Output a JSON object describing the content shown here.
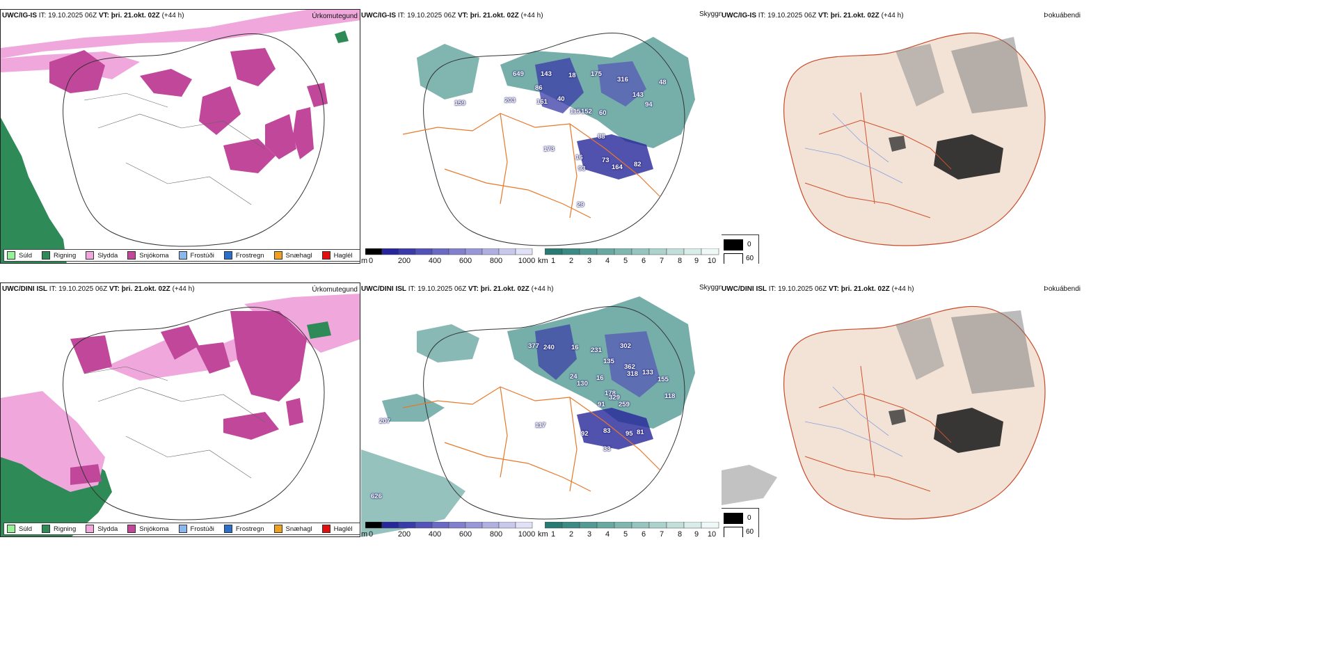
{
  "row1": {
    "model": "UWC/IG-IS",
    "it_label": "IT:",
    "it_value": "19.10.2025 06Z",
    "vt_label": "VT:",
    "vt_value": "þri. 21.okt. 02Z",
    "lead": "(+44 h)"
  },
  "row2": {
    "model": "UWC/DINI ISL",
    "it_label": "IT:",
    "it_value": "19.10.2025 06Z",
    "vt_label": "VT:",
    "vt_value": "þri. 21.okt. 02Z",
    "lead": "(+44 h)"
  },
  "titles": {
    "precip_type": "Úrkomutegund",
    "visibility": "Skyggni",
    "fog": "Þokuábendi"
  },
  "legend": [
    {
      "label": "Súld",
      "color": "#98f098"
    },
    {
      "label": "Rigning",
      "color": "#2e8b57"
    },
    {
      "label": "Slydda",
      "color": "#f0a8dc"
    },
    {
      "label": "Snjókoma",
      "color": "#c0479a"
    },
    {
      "label": "Frostúði",
      "color": "#8ab8ee"
    },
    {
      "label": "Frostregn",
      "color": "#2a6fc9"
    },
    {
      "label": "Snæhagl",
      "color": "#f0a020"
    },
    {
      "label": "Haglél",
      "color": "#e01010"
    }
  ],
  "colorbar_m": {
    "unit": "m",
    "ticks": [
      "0",
      "200",
      "400",
      "600",
      "800",
      "1000"
    ],
    "colors": [
      "#000000",
      "#26269a",
      "#3a3aa8",
      "#5252b8",
      "#6a6ac4",
      "#8080cc",
      "#9898d8",
      "#b0b0e0",
      "#c8c8ec",
      "#e0e0f6"
    ]
  },
  "colorbar_km": {
    "unit": "km",
    "ticks": [
      "1",
      "2",
      "3",
      "4",
      "5",
      "6",
      "7",
      "8",
      "9",
      "10"
    ],
    "colors": [
      "#2a7a74",
      "#3d8a84",
      "#549a94",
      "#6aa8a2",
      "#80b6b0",
      "#96c4be",
      "#acd2cc",
      "#c2dfda",
      "#d8ece8",
      "#eef8f6"
    ]
  },
  "fog_key": {
    "black": "0",
    "white": "60"
  },
  "vis_labels_row1": [
    "649",
    "143",
    "18",
    "175",
    "316",
    "86",
    "161",
    "40",
    "115",
    "152",
    "143",
    "94",
    "48",
    "60",
    "203",
    "159",
    "173",
    "93",
    "73",
    "164",
    "82",
    "88",
    "16",
    "29"
  ],
  "vis_labels_row2": [
    "377",
    "240",
    "16",
    "231",
    "135",
    "362",
    "302",
    "318",
    "133",
    "155",
    "118",
    "24",
    "130",
    "178",
    "16",
    "91",
    "329",
    "259",
    "92",
    "83",
    "95",
    "81",
    "207",
    "117",
    "626",
    "33"
  ],
  "colors": {
    "road": "#e8782a",
    "land_fog": "#f3e3d6",
    "snow": "#c0479a",
    "sleet": "#f0a8dc",
    "rain": "#2e8b57"
  }
}
